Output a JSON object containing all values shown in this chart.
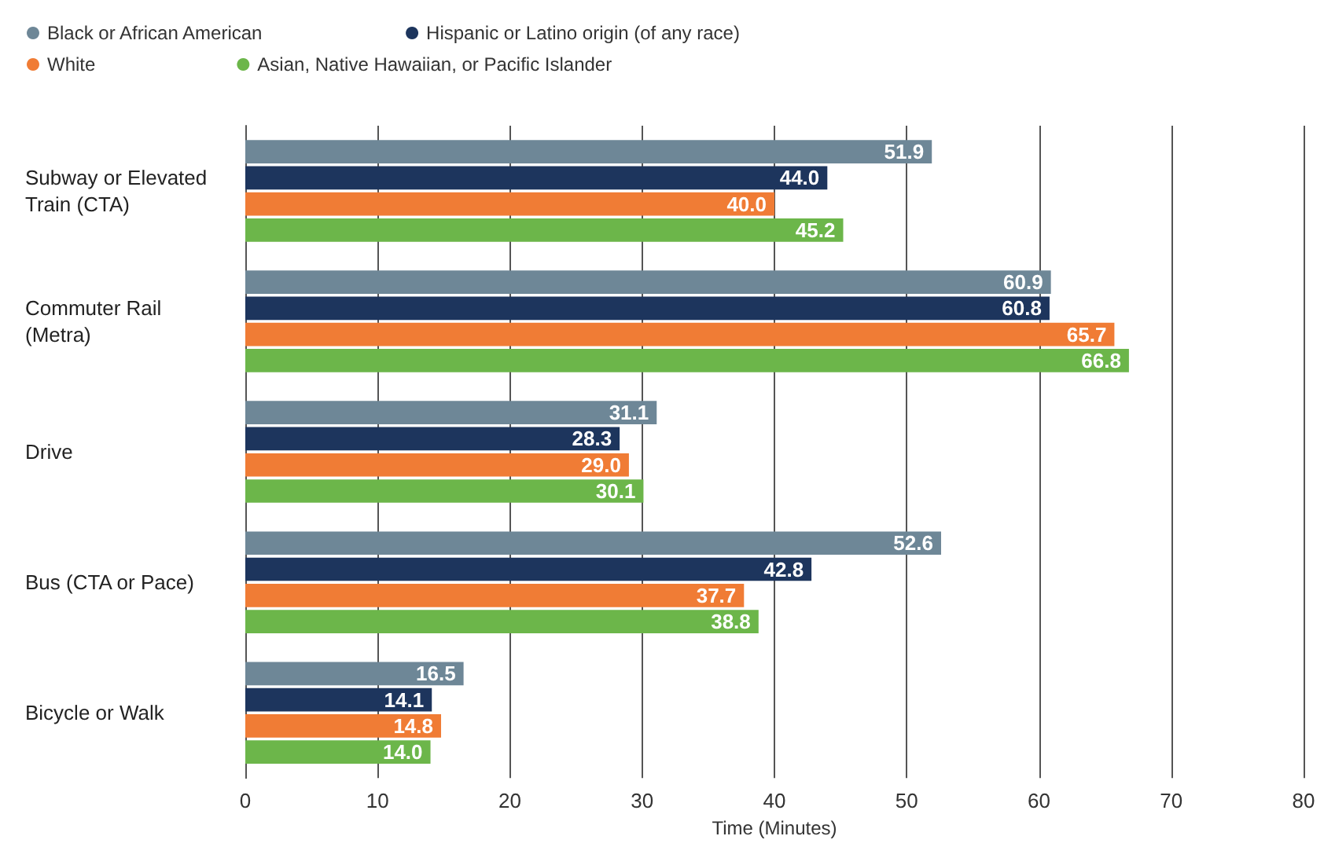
{
  "chart_data": {
    "type": "bar",
    "orientation": "horizontal",
    "xlabel": "Time (Minutes)",
    "categories": [
      "Subway or Elevated Train (CTA)",
      "Commuter Rail (Metra)",
      "Drive",
      "Bus (CTA or Pace)",
      "Bicycle or Walk"
    ],
    "series": [
      {
        "name": "Black or African American",
        "color": "#6e8797",
        "values": [
          51.9,
          60.9,
          31.1,
          52.6,
          16.5
        ],
        "value_labels": [
          "51.9",
          "60.9",
          "31.1",
          "52.6",
          "16.5"
        ]
      },
      {
        "name": "Hispanic or Latino origin (of any race)",
        "color": "#1d355d",
        "values": [
          44,
          60.8,
          28.3,
          42.8,
          14.1
        ],
        "value_labels": [
          "44.0",
          "60.8",
          "28.3",
          "42.8",
          "14.1"
        ]
      },
      {
        "name": "White",
        "color": "#f07c35",
        "values": [
          40,
          65.7,
          29,
          37.7,
          14.8
        ],
        "value_labels": [
          "40.0",
          "65.7",
          "29.0",
          "37.7",
          "14.8"
        ]
      },
      {
        "name": "Asian, Native Hawaiian, or Pacific Islander",
        "color": "#6cb64a",
        "values": [
          45.2,
          66.8,
          30.1,
          38.8,
          14
        ],
        "value_labels": [
          "45.2",
          "66.8",
          "30.1",
          "38.8",
          "14.0"
        ]
      }
    ],
    "xlim": [
      0,
      80
    ],
    "xticks": [
      0,
      10,
      20,
      30,
      40,
      50,
      60,
      70,
      80
    ],
    "grid": "x",
    "legend": "top left"
  }
}
